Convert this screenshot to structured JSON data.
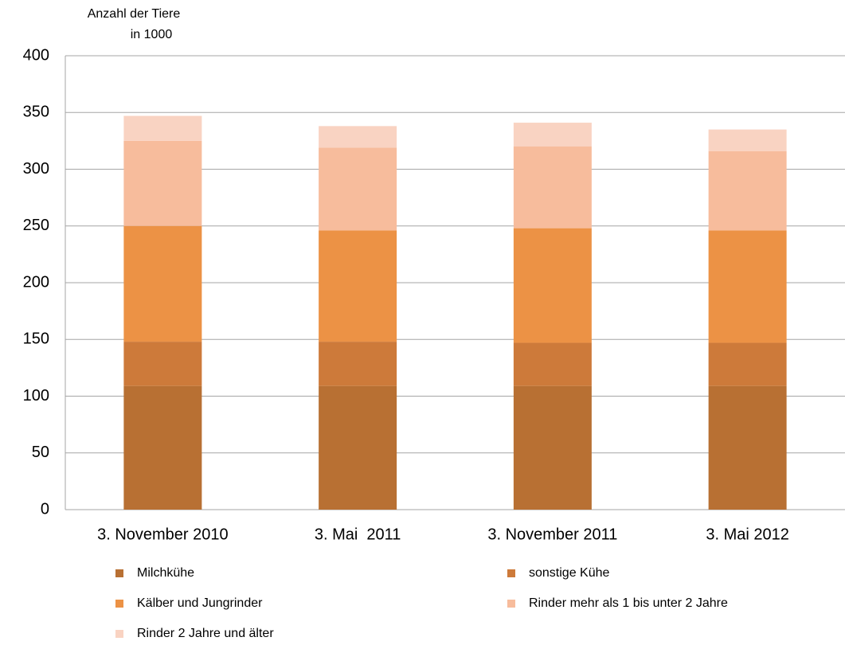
{
  "chart_data": {
    "type": "stacked_bar",
    "y_label": [
      "Anzahl der Tiere",
      "in 1000"
    ],
    "categories": [
      "3. November 2010",
      "3. Mai  2011",
      "3. November 2011",
      "3. Mai 2012"
    ],
    "series": [
      {
        "name": "Milchkühe",
        "color": "#b87033",
        "values": [
          109,
          109,
          109,
          109
        ]
      },
      {
        "name": "sonstige Kühe",
        "color": "#cd7a3a",
        "values": [
          39,
          39,
          38,
          38
        ]
      },
      {
        "name": "Kälber und Jungrinder",
        "color": "#ec9245",
        "values": [
          102,
          98,
          101,
          99
        ]
      },
      {
        "name": "Rinder mehr als 1 bis unter 2 Jahre",
        "color": "#f7bc9c",
        "values": [
          75,
          73,
          72,
          70
        ]
      },
      {
        "name": "Rinder 2 Jahre und älter",
        "color": "#f9d3c2",
        "values": [
          22,
          19,
          21,
          19
        ]
      }
    ],
    "ylim": [
      0,
      400
    ],
    "yticks": [
      0,
      50,
      100,
      150,
      200,
      250,
      300,
      350,
      400
    ],
    "grid": true
  }
}
